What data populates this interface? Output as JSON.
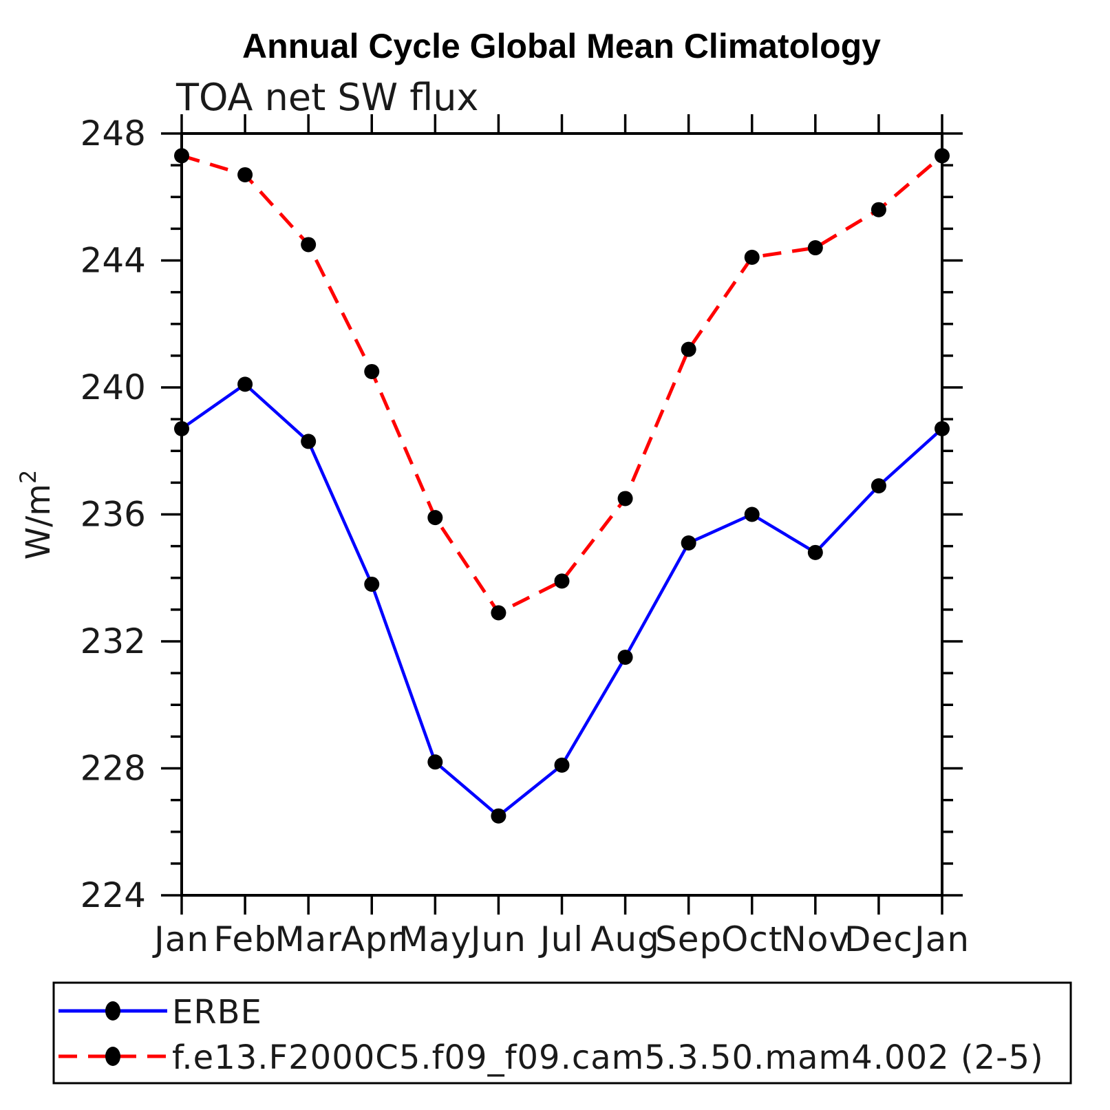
{
  "title": "Annual Cycle Global Mean Climatology",
  "subtitle": "TOA net SW flux",
  "y_axis": {
    "label_base": "W/m",
    "label_sup": "2"
  },
  "legend": {
    "entries": [
      {
        "label": "ERBE"
      },
      {
        "label": "f.e13.F2000C5.f09_f09.cam5.3.50.mam4.002 (2-5)"
      }
    ]
  },
  "style": {
    "background": "#ffffff",
    "axis_color": "#000000",
    "marker_color": "#000000",
    "erbe_color": "#0000ff",
    "model_color": "#ff0000"
  },
  "chart_data": {
    "type": "line",
    "title": "Annual Cycle Global Mean Climatology",
    "subtitle": "TOA net SW flux",
    "xlabel": "",
    "ylabel": "W/m²",
    "categories": [
      "Jan",
      "Feb",
      "Mar",
      "Apr",
      "May",
      "Jun",
      "Jul",
      "Aug",
      "Sep",
      "Oct",
      "Nov",
      "Dec",
      "Jan"
    ],
    "ylim": [
      224,
      248
    ],
    "ytick_major": 4,
    "ytick_minor": 1,
    "grid": false,
    "legend_position": "bottom",
    "series": [
      {
        "name": "ERBE",
        "color": "#0000ff",
        "line_style": "solid",
        "marker": "filled-circle",
        "marker_color": "#000000",
        "values": [
          238.7,
          240.1,
          238.3,
          233.8,
          228.2,
          226.5,
          228.1,
          231.5,
          235.1,
          236.0,
          234.8,
          236.9,
          238.7
        ]
      },
      {
        "name": "f.e13.F2000C5.f09_f09.cam5.3.50.mam4.002 (2-5)",
        "color": "#ff0000",
        "line_style": "dashed",
        "marker": "filled-circle",
        "marker_color": "#000000",
        "values": [
          247.3,
          246.7,
          244.5,
          240.5,
          235.9,
          232.9,
          233.9,
          236.5,
          241.2,
          244.1,
          244.4,
          245.6,
          247.3
        ]
      }
    ]
  }
}
